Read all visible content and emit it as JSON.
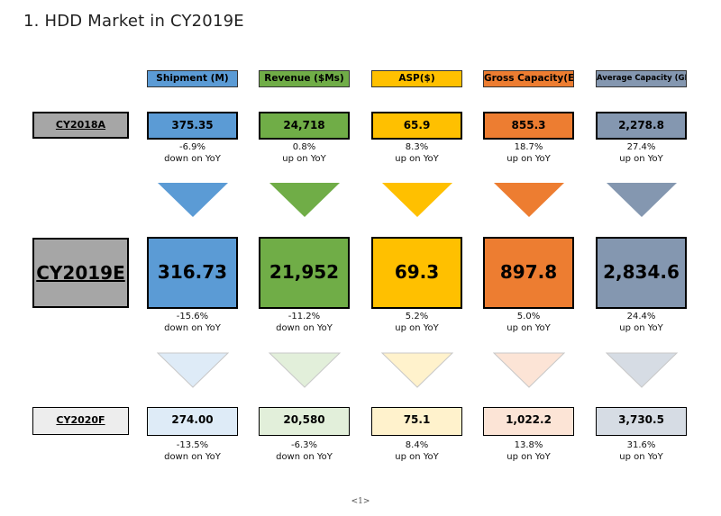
{
  "title": "1. HDD Market in CY2019E",
  "page_number": "<1>",
  "columns": [
    {
      "label": "Shipment (M)",
      "color": "#5b9bd5",
      "light": "#deebf7"
    },
    {
      "label": "Revenue ($Ms)",
      "color": "#70ad47",
      "light": "#e2efda"
    },
    {
      "label": "ASP($)",
      "color": "#ffc000",
      "light": "#fff2cc"
    },
    {
      "label": "Gross Capacity(EB)",
      "color": "#ed7d31",
      "light": "#fce4d6"
    },
    {
      "label": "Average Capacity (GB)",
      "color": "#8497b0",
      "light": "#d6dce4"
    }
  ],
  "rows": {
    "cy2018a": {
      "label": "CY2018A",
      "label_bg": "#a6a6a6",
      "values": [
        "375.35",
        "24,718",
        "65.9",
        "855.3",
        "2,278.8"
      ],
      "changes": [
        {
          "pct": "-6.9%",
          "dir": "down on YoY"
        },
        {
          "pct": "0.8%",
          "dir": "up on YoY"
        },
        {
          "pct": "8.3%",
          "dir": "up on YoY"
        },
        {
          "pct": "18.7%",
          "dir": "up on YoY"
        },
        {
          "pct": "27.4%",
          "dir": "up on YoY"
        }
      ]
    },
    "cy2019e": {
      "label": "CY2019E",
      "label_bg": "#a6a6a6",
      "values": [
        "316.73",
        "21,952",
        "69.3",
        "897.8",
        "2,834.6"
      ],
      "changes": [
        {
          "pct": "-15.6%",
          "dir": "down on YoY"
        },
        {
          "pct": "-11.2%",
          "dir": "down on YoY"
        },
        {
          "pct": "5.2%",
          "dir": "up on YoY"
        },
        {
          "pct": "5.0%",
          "dir": "up on YoY"
        },
        {
          "pct": "24.4%",
          "dir": "up on YoY"
        }
      ]
    },
    "cy2020f": {
      "label": "CY2020F",
      "label_bg": "#ededed",
      "values": [
        "274.00",
        "20,580",
        "75.1",
        "1,022.2",
        "3,730.5"
      ],
      "changes": [
        {
          "pct": "-13.5%",
          "dir": "down on YoY"
        },
        {
          "pct": "-6.3%",
          "dir": "down on YoY"
        },
        {
          "pct": "8.4%",
          "dir": "up on YoY"
        },
        {
          "pct": "13.8%",
          "dir": "up on YoY"
        },
        {
          "pct": "31.6%",
          "dir": "up on YoY"
        }
      ]
    }
  }
}
